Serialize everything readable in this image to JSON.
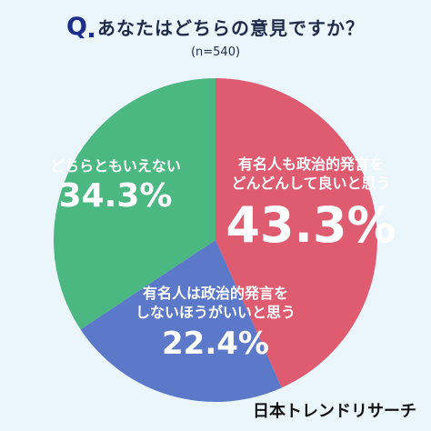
{
  "header": {
    "q_mark": "Q",
    "question": "あなたはどちらの意見ですか？",
    "sample_size": "(n=540)"
  },
  "chart_data": {
    "type": "pie",
    "categories": [
      "有名人も政治的発言をどんどんして良いと思う",
      "有名人は政治的発言をしないほうがいいと思う",
      "どちらともいえない"
    ],
    "values": [
      43.3,
      22.4,
      34.3
    ],
    "value_labels": [
      "43.3%",
      "22.4%",
      "34.3%"
    ],
    "colors": [
      "#df5b70",
      "#5b78c9",
      "#4bb882"
    ],
    "start_angle_deg": 0,
    "direction": "clockwise"
  },
  "labels": {
    "red_line1": "有名人も政治的発言を",
    "red_line2": "どんどんして良いと思う",
    "blue_line1": "有名人は政治的発言を",
    "blue_line2": "しないほうがいいと思う",
    "green_line1": "どちらともいえない"
  },
  "footer": {
    "brand": "日本トレンドリサーチ"
  }
}
